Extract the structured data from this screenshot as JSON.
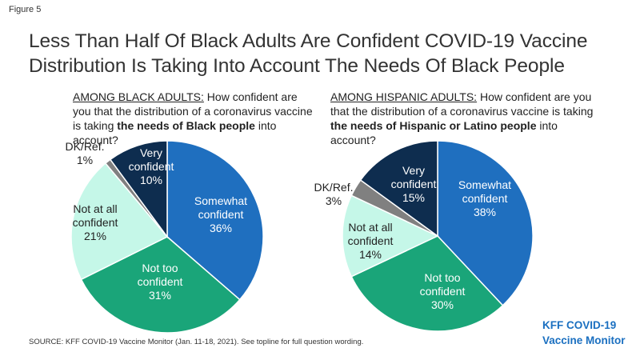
{
  "figure_label": "Figure 5",
  "title_lines": [
    "Less Than Half Of Black Adults Are Confident COVID-19 Vaccine",
    "Distribution Is Taking Into Account The Needs Of Black People"
  ],
  "colors": {
    "very": "#0e2d4f",
    "somewhat": "#1f6fbf",
    "not_too": "#1aa579",
    "not_at_all": "#c5f7e8",
    "dk": "#808080"
  },
  "left_question": {
    "group": "AMONG BLACK ADULTS:",
    "pre": " How confident are you that the distribution of a coronavirus vaccine is taking ",
    "bold": "the needs of Black people",
    "post": " into account?"
  },
  "right_question": {
    "group": "AMONG HISPANIC ADULTS:",
    "pre": " How confident are you that the distribution of a coronavirus vaccine is taking ",
    "bold": "the needs of Hispanic or Latino people",
    "post": " into account?"
  },
  "chart_data": [
    {
      "type": "pie",
      "categories": [
        "Very confident",
        "Somewhat confident",
        "Not too confident",
        "Not at all confident",
        "DK/Ref."
      ],
      "values": [
        10,
        36,
        31,
        21,
        1
      ],
      "labels": [
        "Very confident 10%",
        "Somewhat confident 36%",
        "Not too confident 31%",
        "Not at all confident 21%",
        "DK/Ref. 1%"
      ],
      "label_lines": [
        [
          "Very",
          "confident",
          "10%"
        ],
        [
          "Somewhat",
          "confident",
          "36%"
        ],
        [
          "Not too",
          "confident",
          "31%"
        ],
        [
          "Not at all",
          "confident",
          "21%"
        ],
        [
          "DK/Ref.",
          "1%"
        ]
      ],
      "start": "12 o'clock, clockwise from Somewhat confident"
    },
    {
      "type": "pie",
      "categories": [
        "Very confident",
        "Somewhat confident",
        "Not too confident",
        "Not at all confident",
        "DK/Ref."
      ],
      "values": [
        15,
        38,
        30,
        14,
        3
      ],
      "labels": [
        "Very confident 15%",
        "Somewhat confident 38%",
        "Not too confident 30%",
        "Not at all confident 14%",
        "DK/Ref. 3%"
      ],
      "label_lines": [
        [
          "Very",
          "confident",
          "15%"
        ],
        [
          "Somewhat",
          "confident",
          "38%"
        ],
        [
          "Not too",
          "confident",
          "30%"
        ],
        [
          "Not at all",
          "confident",
          "14%"
        ],
        [
          "DK/Ref.",
          "3%"
        ]
      ],
      "start": "12 o'clock, clockwise from Somewhat confident"
    }
  ],
  "source": "SOURCE: KFF COVID-19 Vaccine Monitor (Jan. 11-18, 2021). See topline for full question wording.",
  "brand_lines": [
    "KFF COVID-19",
    "Vaccine Monitor"
  ]
}
